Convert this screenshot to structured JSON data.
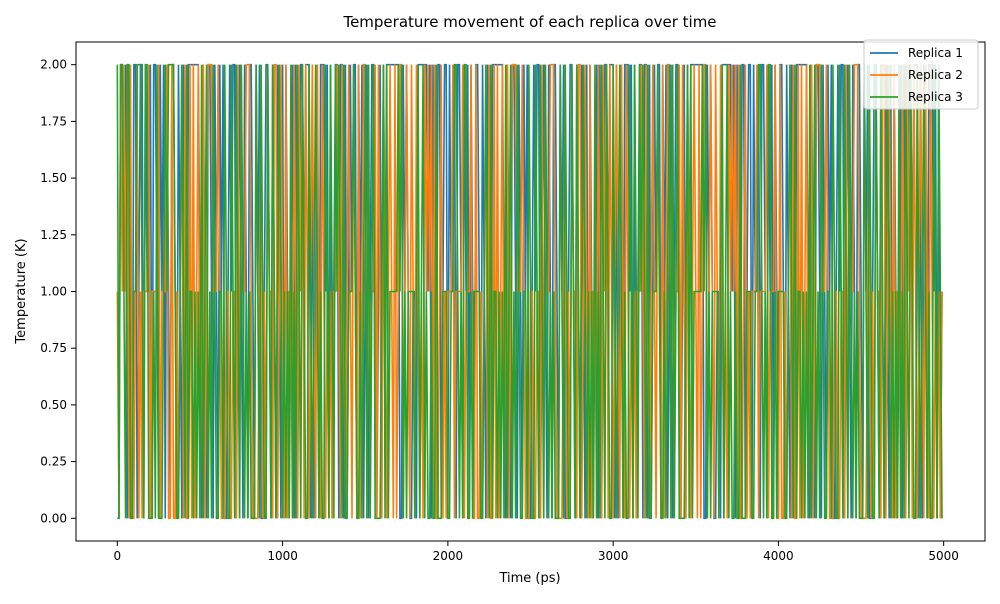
{
  "chart_data": {
    "type": "line",
    "title": "Temperature movement of each replica over time",
    "xlabel": "Time (ps)",
    "ylabel": "Temperature (K)",
    "xlim": [
      -250,
      5250
    ],
    "ylim": [
      -0.1,
      2.1
    ],
    "x_ticks": [
      0,
      1000,
      2000,
      3000,
      4000,
      5000
    ],
    "x_tick_labels": [
      "0",
      "1000",
      "2000",
      "3000",
      "4000",
      "5000"
    ],
    "y_ticks": [
      0,
      0.25,
      0.5,
      0.75,
      1.0,
      1.25,
      1.5,
      1.75,
      2.0
    ],
    "y_tick_labels": [
      "0.00",
      "0.25",
      "0.50",
      "0.75",
      "1.00",
      "1.25",
      "1.50",
      "1.75",
      "2.00"
    ],
    "grid": false,
    "legend_position": "top-right",
    "x_range_shown": [
      0,
      4990
    ],
    "series": [
      {
        "name": "Replica 1",
        "color": "#1f77b4",
        "x": [
          0,
          10,
          20,
          30,
          40,
          50,
          60,
          70,
          80,
          90,
          100,
          110,
          120,
          130,
          140,
          150,
          160,
          170,
          180,
          190,
          200,
          210,
          220,
          230,
          240,
          250,
          260,
          270,
          280,
          290,
          300,
          310,
          320,
          330,
          340,
          350,
          360,
          370,
          380,
          390,
          400,
          410,
          420,
          430,
          440,
          450,
          460,
          470,
          480,
          490,
          500,
          510,
          520,
          530,
          540,
          550,
          560,
          570,
          580,
          590,
          600,
          610,
          620,
          630,
          640,
          650,
          660,
          670,
          680,
          690,
          700,
          710,
          720,
          730,
          740,
          750,
          760,
          770,
          780,
          790,
          800,
          810,
          820,
          830,
          840,
          850,
          860,
          870,
          880,
          890,
          900,
          910,
          920,
          930,
          940,
          950,
          960,
          970,
          980,
          990,
          1000
        ],
        "values": [
          0,
          0,
          2,
          2,
          1,
          2,
          0,
          2,
          1,
          0,
          2,
          2,
          0,
          1,
          2,
          2,
          0,
          2,
          1,
          1,
          2,
          0,
          2,
          2,
          1,
          0,
          2,
          1,
          2,
          0,
          2,
          1,
          0,
          2,
          2,
          1,
          0,
          2,
          1,
          0,
          2,
          1,
          0,
          2,
          2,
          2,
          2,
          2,
          2,
          2,
          1,
          0,
          2,
          1,
          0,
          2,
          2,
          1,
          0,
          2,
          1,
          0,
          2,
          1,
          2,
          0,
          0,
          1,
          2,
          1,
          2,
          2,
          0,
          1,
          2,
          1,
          0,
          2,
          1,
          0,
          2,
          2,
          1,
          0,
          2,
          1,
          2,
          0,
          0,
          1,
          2,
          2,
          1,
          0,
          2,
          1,
          0,
          2,
          1,
          0,
          2
        ]
      },
      {
        "name": "Replica 2",
        "color": "#ff7f0e",
        "x": [
          0,
          10,
          20,
          30,
          40,
          50,
          60,
          70,
          80,
          90,
          100,
          110,
          120,
          130,
          140,
          150,
          160,
          170,
          180,
          190,
          200,
          210,
          220,
          230,
          240,
          250,
          260,
          270,
          280,
          290,
          300,
          310,
          320,
          330,
          340,
          350,
          360,
          370,
          380,
          390,
          400,
          410,
          420,
          430,
          440,
          450,
          460,
          470,
          480,
          490,
          500,
          510,
          520,
          530,
          540,
          550,
          560,
          570,
          580,
          590,
          600,
          610,
          620,
          630,
          640,
          650,
          660,
          670,
          680,
          690,
          700,
          710,
          720,
          730,
          740,
          750,
          760,
          770,
          780,
          790,
          800,
          810,
          820,
          830,
          840,
          850,
          860,
          870,
          880,
          890,
          900,
          910,
          920,
          930,
          940,
          950,
          960,
          970,
          980,
          990,
          1000
        ],
        "values": [
          1,
          1,
          0,
          1,
          2,
          0,
          1,
          0,
          2,
          1,
          1,
          0,
          2,
          2,
          0,
          1,
          2,
          1,
          0,
          2,
          0,
          1,
          1,
          0,
          2,
          1,
          0,
          2,
          1,
          2,
          0,
          2,
          1,
          0,
          1,
          2,
          1,
          0,
          2,
          1,
          0,
          2,
          1,
          0,
          1,
          0,
          1,
          0,
          1,
          1,
          2,
          1,
          0,
          2,
          1,
          0,
          1,
          2,
          1,
          0,
          2,
          1,
          0,
          2,
          0,
          1,
          2,
          2,
          0,
          2,
          0,
          1,
          1,
          2,
          0,
          2,
          1,
          0,
          2,
          1,
          0,
          1,
          2,
          1,
          0,
          2,
          0,
          1,
          2,
          2,
          0,
          1,
          2,
          1,
          0,
          2,
          1,
          0,
          2,
          1,
          0
        ]
      },
      {
        "name": "Replica 3",
        "color": "#2ca02c",
        "x": [
          0,
          10,
          20,
          30,
          40,
          50,
          60,
          70,
          80,
          90,
          100,
          110,
          120,
          130,
          140,
          150,
          160,
          170,
          180,
          190,
          200,
          210,
          220,
          230,
          240,
          250,
          260,
          270,
          280,
          290,
          300,
          310,
          320,
          330,
          340,
          350,
          360,
          370,
          380,
          390,
          400,
          410,
          420,
          430,
          440,
          450,
          460,
          470,
          480,
          490,
          500,
          510,
          520,
          530,
          540,
          550,
          560,
          570,
          580,
          590,
          600,
          610,
          620,
          630,
          640,
          650,
          660,
          670,
          680,
          690,
          700,
          710,
          720,
          730,
          740,
          750,
          760,
          770,
          780,
          790,
          800,
          810,
          820,
          830,
          840,
          850,
          860,
          870,
          880,
          890,
          900,
          910,
          920,
          930,
          940,
          950,
          960,
          970,
          980,
          990,
          1000
        ],
        "values": [
          2,
          2,
          1,
          0,
          0,
          1,
          2,
          1,
          0,
          2,
          0,
          1,
          1,
          0,
          1,
          0,
          1,
          0,
          2,
          0,
          1,
          2,
          0,
          1,
          0,
          2,
          1,
          0,
          0,
          1,
          1,
          0,
          2,
          1,
          0,
          0,
          2,
          1,
          0,
          2,
          1,
          0,
          2,
          1,
          0,
          1,
          0,
          1,
          0,
          0,
          0,
          2,
          1,
          0,
          2,
          1,
          0,
          0,
          2,
          1,
          0,
          2,
          1,
          0,
          1,
          2,
          1,
          0,
          1,
          0,
          1,
          0,
          2,
          0,
          1,
          0,
          2,
          1,
          0,
          2,
          1,
          0,
          0,
          2,
          1,
          0,
          1,
          2,
          1,
          0,
          1,
          0,
          0,
          2,
          1,
          0,
          2,
          1,
          0,
          2,
          1
        ]
      }
    ]
  }
}
